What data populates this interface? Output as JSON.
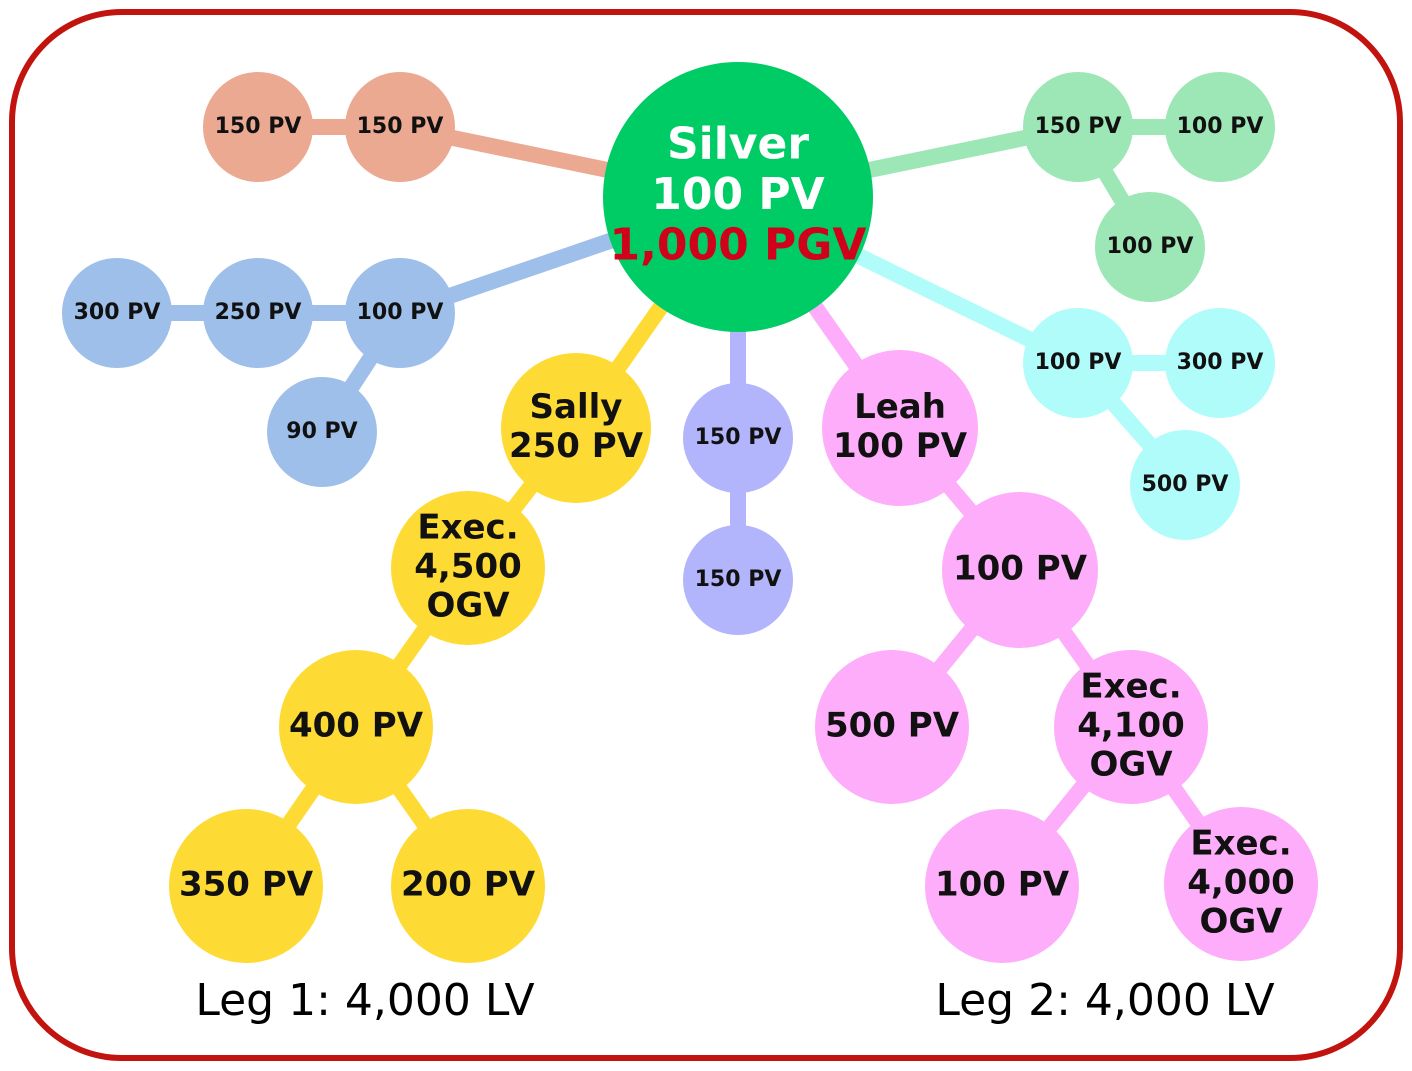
{
  "nodes": [
    {
      "lines": [
        "Silver",
        "100 PV",
        "1,000 PGV"
      ]
    },
    {
      "lines": [
        "150 PV"
      ]
    },
    {
      "lines": [
        "150 PV"
      ]
    },
    {
      "lines": [
        "300 PV"
      ]
    },
    {
      "lines": [
        "250 PV"
      ]
    },
    {
      "lines": [
        "100 PV"
      ]
    },
    {
      "lines": [
        "90 PV"
      ]
    },
    {
      "lines": [
        "Sally",
        "250 PV"
      ]
    },
    {
      "lines": [
        "Exec.",
        "4,500",
        "OGV"
      ]
    },
    {
      "lines": [
        "400 PV"
      ]
    },
    {
      "lines": [
        "350 PV"
      ]
    },
    {
      "lines": [
        "200 PV"
      ]
    },
    {
      "lines": [
        "150 PV"
      ]
    },
    {
      "lines": [
        "150 PV"
      ]
    },
    {
      "lines": [
        "Leah",
        "100 PV"
      ]
    },
    {
      "lines": [
        "100 PV"
      ]
    },
    {
      "lines": [
        "500 PV"
      ]
    },
    {
      "lines": [
        "Exec.",
        "4,100",
        "OGV"
      ]
    },
    {
      "lines": [
        "100 PV"
      ]
    },
    {
      "lines": [
        "Exec.",
        "4,000",
        "OGV"
      ]
    },
    {
      "lines": [
        "150 PV"
      ]
    },
    {
      "lines": [
        "100 PV"
      ]
    },
    {
      "lines": [
        "100 PV"
      ]
    },
    {
      "lines": [
        "100 PV"
      ]
    },
    {
      "lines": [
        "300 PV"
      ]
    },
    {
      "lines": [
        "500 PV"
      ]
    }
  ],
  "legs": [
    "Leg 1: 4,000 LV",
    "Leg 2: 4,000 LV"
  ]
}
